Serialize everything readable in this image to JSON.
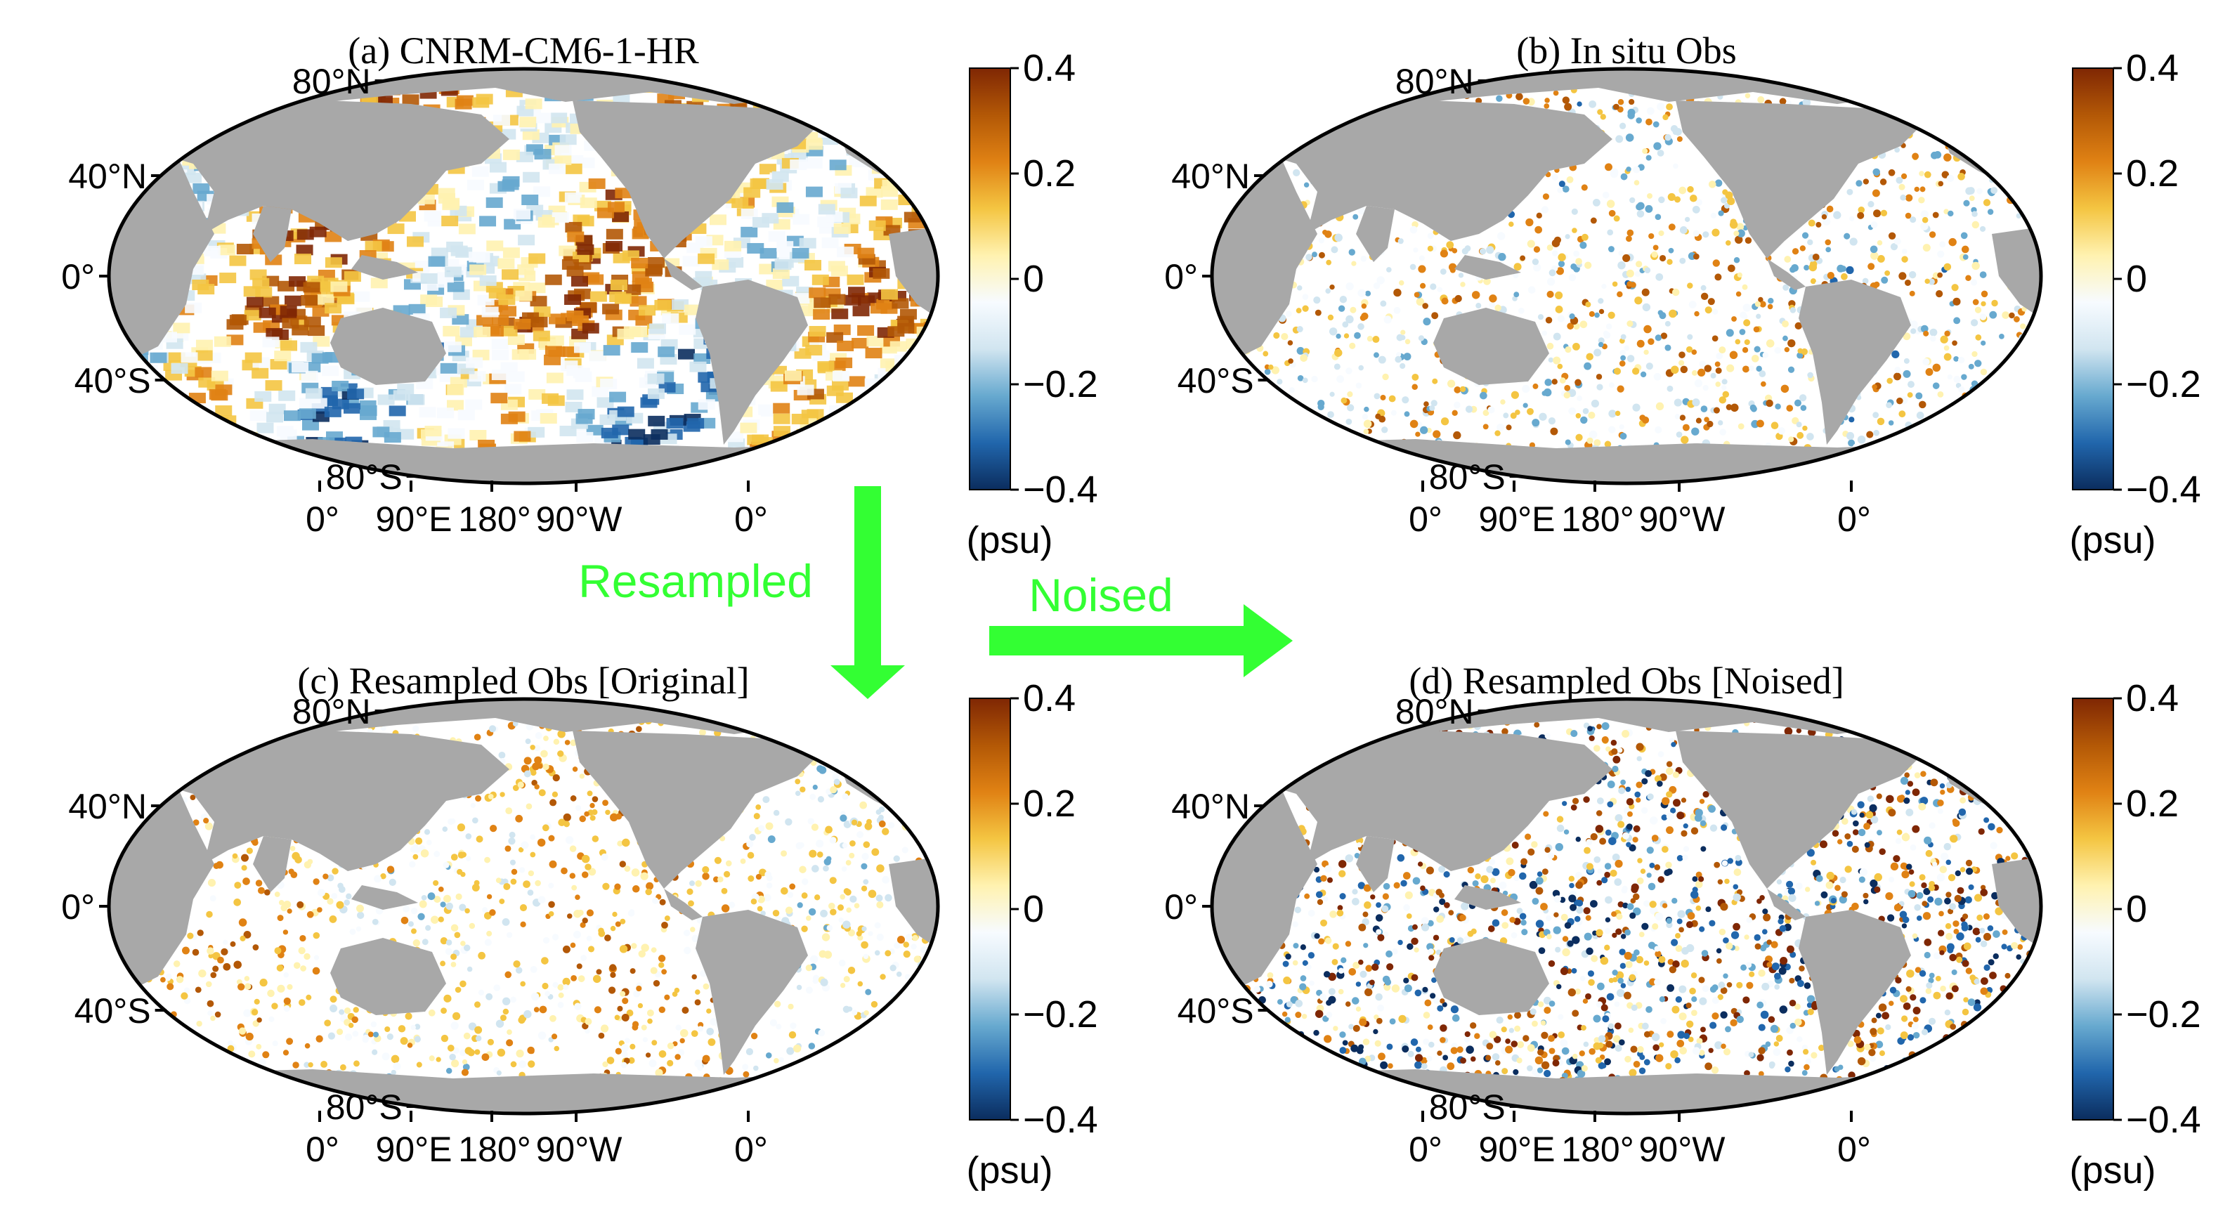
{
  "figure": {
    "arrow_labels": {
      "resampled": "Resampled",
      "noised": "Noised"
    },
    "arrow_color": "#33ff33"
  },
  "panels": [
    {
      "id": "a",
      "title": "(a) CNRM-CM6-1-HR",
      "unit_label": "(psu)",
      "coverage": "full",
      "lat_labels": [
        "80°N",
        "40°N",
        "0°",
        "40°S",
        "80°S"
      ],
      "lon_labels": [
        "0°",
        "90°E",
        "180°",
        "90°W",
        "0°"
      ],
      "colorbar_ticks": [
        "0.4",
        "0.2",
        "0",
        "−0.2",
        "−0.4"
      ]
    },
    {
      "id": "b",
      "title": "(b) In situ Obs",
      "unit_label": "(psu)",
      "coverage": "sparse",
      "lat_labels": [
        "80°N",
        "40°N",
        "0°",
        "40°S",
        "80°S"
      ],
      "lon_labels": [
        "0°",
        "90°E",
        "180°",
        "90°W",
        "0°"
      ],
      "colorbar_ticks": [
        "0.4",
        "0.2",
        "0",
        "−0.2",
        "−0.4"
      ]
    },
    {
      "id": "c",
      "title": "(c) Resampled Obs [Original]",
      "unit_label": "(psu)",
      "coverage": "sparse",
      "lat_labels": [
        "80°N",
        "40°N",
        "0°",
        "40°S",
        "80°S"
      ],
      "lon_labels": [
        "0°",
        "90°E",
        "180°",
        "90°W",
        "0°"
      ],
      "colorbar_ticks": [
        "0.4",
        "0.2",
        "0",
        "−0.2",
        "−0.4"
      ]
    },
    {
      "id": "d",
      "title": "(d) Resampled Obs [Noised]",
      "unit_label": "(psu)",
      "coverage": "noisy",
      "lat_labels": [
        "80°N",
        "40°N",
        "0°",
        "40°S",
        "80°S"
      ],
      "lon_labels": [
        "0°",
        "90°E",
        "180°",
        "90°W",
        "0°"
      ],
      "colorbar_ticks": [
        "0.4",
        "0.2",
        "0",
        "−0.2",
        "−0.4"
      ]
    }
  ],
  "colormap": {
    "stops": [
      "#0b2d5e",
      "#2166ac",
      "#67a9cf",
      "#d1e5f0",
      "#f7fbff",
      "#fff2b0",
      "#f4c542",
      "#e08214",
      "#b35806",
      "#7f2704"
    ]
  },
  "colors": {
    "land": "#a8a8a8",
    "ocean_blank": "#ffffff",
    "frame": "#000000"
  }
}
